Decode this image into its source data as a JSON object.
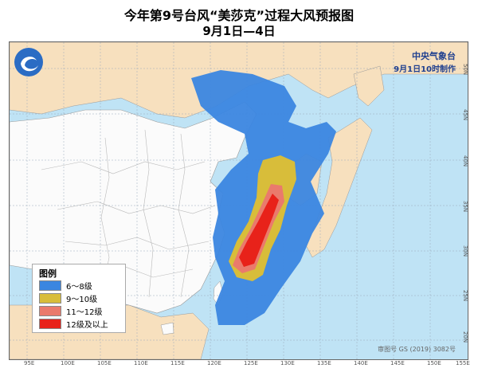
{
  "title": {
    "line1": "今年第9号台风“美莎克”过程大风预报图",
    "line2": "9月1日—4日"
  },
  "issuer": {
    "name": "中央气象台",
    "time": "9月1日10时制作"
  },
  "legend": {
    "title": "图例",
    "items": [
      {
        "label": "6～8级",
        "color": "#3b86e0"
      },
      {
        "label": "9～10级",
        "color": "#d8bd3a"
      },
      {
        "label": "11～12级",
        "color": "#ea7a6c"
      },
      {
        "label": "12级及以上",
        "color": "#e8221a"
      }
    ]
  },
  "copyright": "审图号 GS (2019) 3082号",
  "longitude_labels": [
    "95E",
    "100E",
    "105E",
    "110E",
    "115E",
    "120E",
    "125E",
    "130E",
    "135E",
    "140E",
    "145E",
    "150E",
    "155E"
  ],
  "latitude_labels": [
    "50N",
    "45N",
    "40N",
    "35N",
    "30N",
    "25N",
    "20N"
  ],
  "colors": {
    "sea": "#bfe3f5",
    "china": "#fbfbfb",
    "neighbors": "#f7e0be",
    "grid": "#9ab",
    "province_border": "#b9b9b9"
  }
}
